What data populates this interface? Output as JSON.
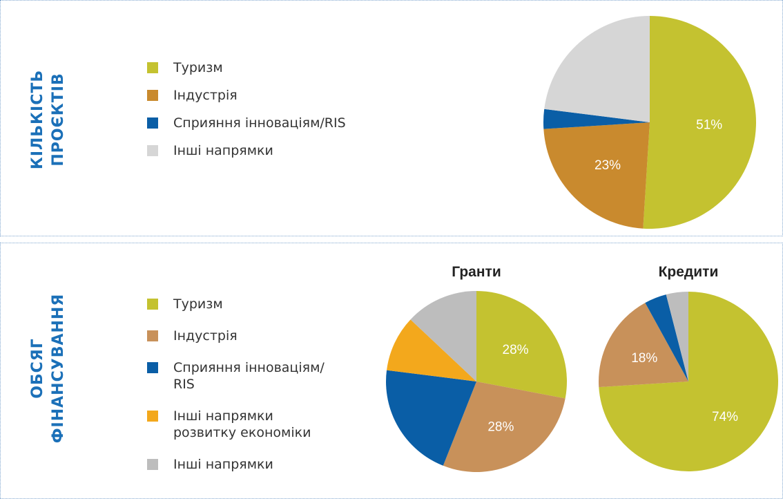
{
  "sections": [
    {
      "title_lines": [
        "КІЛЬКІСТЬ",
        "ПРОЄКТІВ"
      ]
    },
    {
      "title_lines": [
        "ОБСЯГ",
        "ФІНАНСУВАННЯ"
      ]
    }
  ],
  "chart_data": [
    {
      "type": "pie",
      "categories": [
        "Туризм",
        "Індустрія",
        "Сприяння інноваціям/RIS",
        "Інші напрямки"
      ],
      "values": [
        51,
        23,
        3,
        23
      ],
      "value_labels": [
        "51%",
        "23%",
        null,
        null
      ],
      "colors": [
        "#c4c230",
        "#c98a2e",
        "#0a5ea6",
        "#d6d6d6"
      ]
    },
    {
      "type": "pie",
      "title": "Гранти",
      "categories": [
        "Туризм",
        "Індустрія",
        "Сприяння інноваціям/\nRIS",
        "Інші напрямки\nрозвитку економіки",
        "Інші напрямки"
      ],
      "values": [
        28,
        28,
        21,
        10,
        13
      ],
      "value_labels": [
        "28%",
        "28%",
        null,
        null,
        null
      ],
      "colors": [
        "#c4c230",
        "#c8915a",
        "#0a5ea6",
        "#f3a81c",
        "#bdbdbd"
      ]
    },
    {
      "type": "pie",
      "title": "Кредити",
      "values": [
        74,
        18,
        4,
        0,
        4
      ],
      "value_labels": [
        "74%",
        "18%",
        null,
        null,
        null
      ],
      "colors": [
        "#c4c230",
        "#c8915a",
        "#0a5ea6",
        "#f3a81c",
        "#bdbdbd"
      ]
    }
  ]
}
